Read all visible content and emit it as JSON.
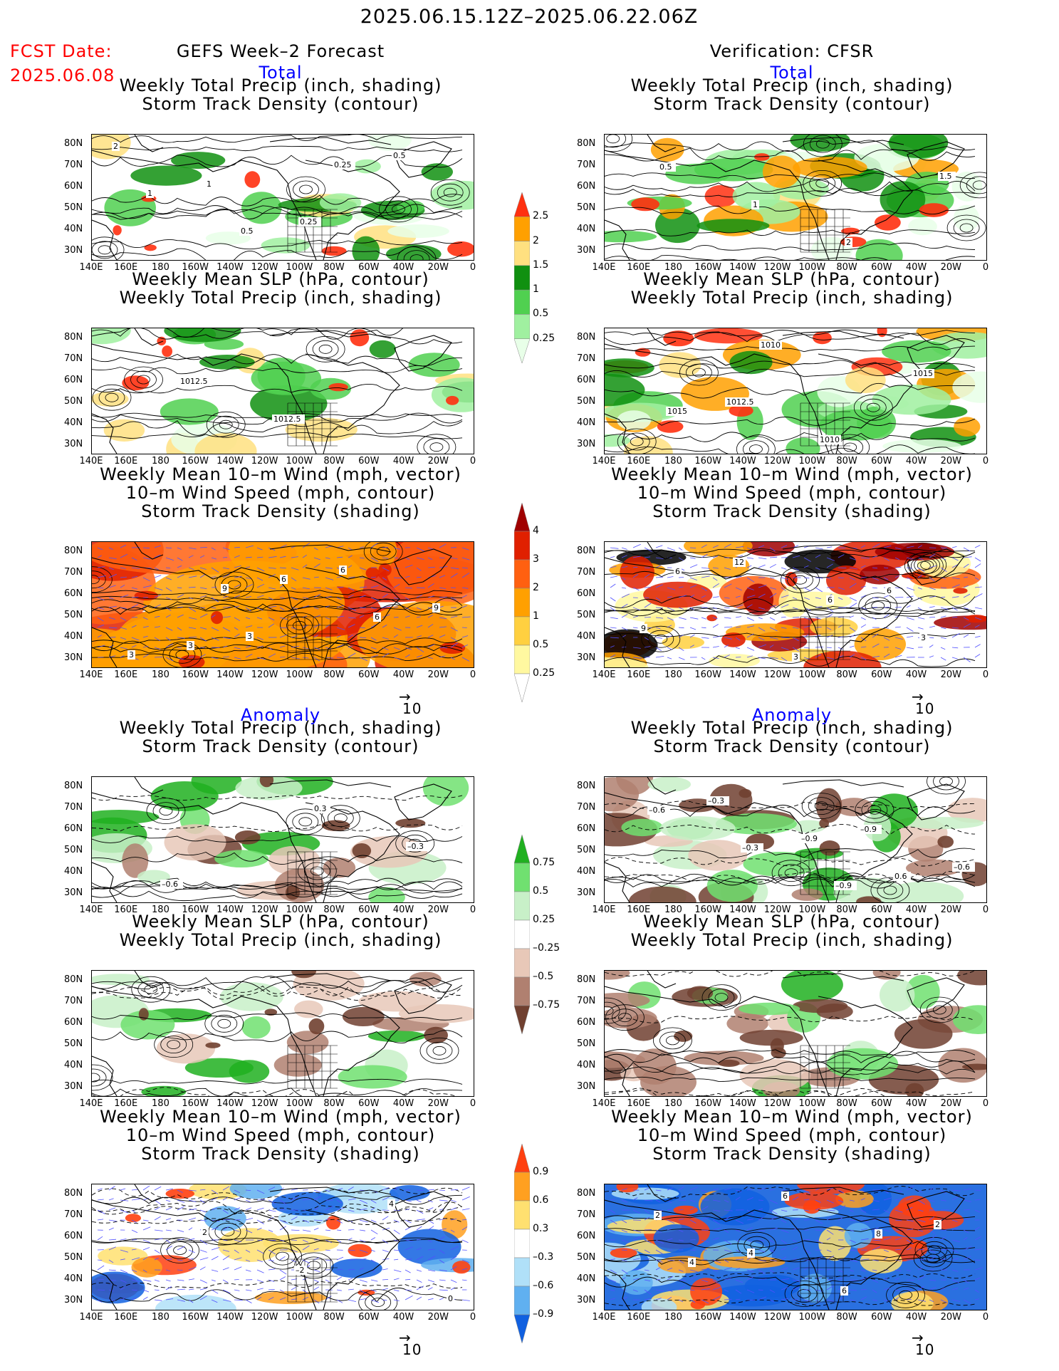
{
  "header": {
    "date_range": "2025.06.15.12Z–2025.06.22.06Z",
    "fcst_date_label": "FCST Date:",
    "fcst_date_value": "2025.06.08",
    "left_title": "GEFS Week–2 Forecast",
    "right_title": "Verification: CFSR"
  },
  "sections": {
    "total": "Total",
    "anomaly": "Anomaly"
  },
  "titles": {
    "precip_storm": [
      "Weekly Total Precip (inch, shading)",
      "Storm Track Density (contour)"
    ],
    "slp_precip": [
      "Weekly Mean SLP (hPa, contour)",
      "Weekly Total Precip (inch, shading)"
    ],
    "wind_storm": [
      "Weekly Mean 10–m Wind (mph, vector)",
      "10–m Wind Speed (mph, contour)",
      "Storm Track Density (shading)"
    ]
  },
  "axes": {
    "lat_ticks": [
      "80N",
      "70N",
      "60N",
      "50N",
      "40N",
      "30N"
    ],
    "lon_ticks": [
      "140E",
      "160E",
      "180",
      "160W",
      "140W",
      "120W",
      "100W",
      "80W",
      "60W",
      "40W",
      "20W",
      "0"
    ]
  },
  "vector_ref": "10",
  "colorbars": {
    "precip_total": [
      "2.5",
      "2",
      "1.5",
      "1",
      "0.5",
      "0.25"
    ],
    "storm_total": [
      "4",
      "3",
      "2",
      "1",
      "0.5",
      "0.25"
    ],
    "precip_anom": [
      "0.75",
      "0.5",
      "0.25",
      "–0.25",
      "–0.5",
      "–0.75"
    ],
    "storm_anom": [
      "0.9",
      "0.6",
      "0.3",
      "–0.3",
      "–0.6",
      "–0.9"
    ]
  },
  "colors": {
    "precip": [
      "#e8ffe8",
      "#a0f0a0",
      "#50d050",
      "#109010",
      "#ffe080",
      "#ffa000",
      "#ff3010"
    ],
    "storm": [
      "#fff8a0",
      "#ffd040",
      "#ffa000",
      "#ff6010",
      "#e02000",
      "#a00000"
    ],
    "precip_anom_pos": [
      "#c8f0c8",
      "#70e070",
      "#20b020"
    ],
    "precip_anom_neg": [
      "#e8c8b8",
      "#b08070",
      "#704030"
    ],
    "storm_anom_pos": [
      "#ffe070",
      "#ffa020",
      "#ff4010"
    ],
    "storm_anom_neg": [
      "#b0e0f8",
      "#60b0f0",
      "#1060e0"
    ]
  },
  "map_labels": {
    "p1": [
      "2",
      "1",
      "0.25",
      "0.5",
      "1",
      "0.5",
      "0.25"
    ],
    "p2": [
      "0.5",
      "1",
      "2",
      "1.5"
    ],
    "p3": [
      "1012.5",
      "1012.5"
    ],
    "p4": [
      "1012.5",
      "1010",
      "1015",
      "1015",
      "1010"
    ],
    "p5": [
      "3",
      "6",
      "9",
      "3",
      "6",
      "6",
      "3",
      "9"
    ],
    "p6": [
      "3",
      "6",
      "9",
      "12",
      "6",
      "3",
      "6"
    ],
    "p7": [
      "0.3",
      "–0.3",
      "–0.6"
    ],
    "p8": [
      "–0.9",
      "–0.6",
      "–0.3",
      "–0.9",
      "0.6",
      "–0.6",
      "–0.3",
      "–0.9"
    ],
    "p11": [
      "0",
      "2",
      "–2",
      "4"
    ],
    "p12": [
      "2",
      "4",
      "6",
      "2",
      "4",
      "6",
      "8"
    ]
  }
}
